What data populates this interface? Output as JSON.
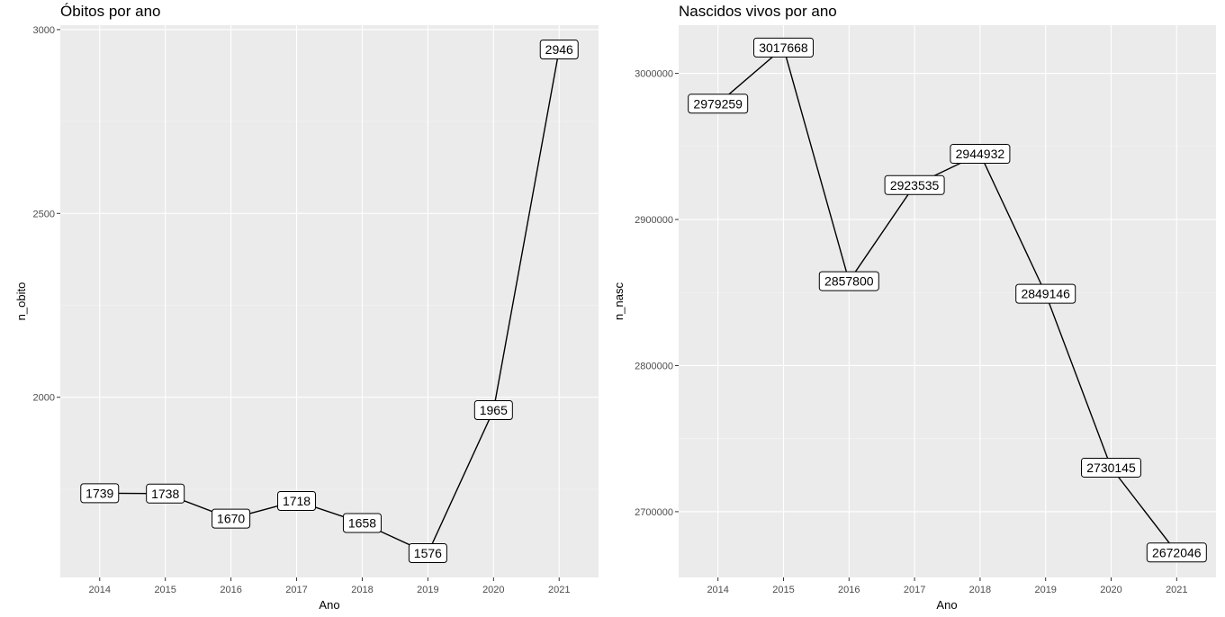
{
  "chart_data": [
    {
      "type": "line",
      "title": "Óbitos por ano",
      "xlabel": "Ano",
      "ylabel": "n_obito",
      "x": [
        2014,
        2015,
        2016,
        2017,
        2018,
        2019,
        2020,
        2021
      ],
      "values": [
        1739,
        1738,
        1670,
        1718,
        1658,
        1576,
        1965,
        2946
      ],
      "x_ticks": [
        "2014",
        "2015",
        "2016",
        "2017",
        "2018",
        "2019",
        "2020",
        "2021"
      ],
      "y_ticks": [
        2000,
        2500,
        3000
      ],
      "y_tick_labels": [
        "2000",
        "2500",
        "3000"
      ],
      "xlim": [
        2013.4,
        2021.6
      ],
      "ylim": [
        1510,
        3012
      ],
      "grid": true,
      "data_labels": true
    },
    {
      "type": "line",
      "title": "Nascidos vivos por ano",
      "xlabel": "Ano",
      "ylabel": "n_nasc",
      "x": [
        2014,
        2015,
        2016,
        2017,
        2018,
        2019,
        2020,
        2021
      ],
      "values": [
        2979259,
        3017668,
        2857800,
        2923535,
        2944932,
        2849146,
        2730145,
        2672046
      ],
      "x_ticks": [
        "2014",
        "2015",
        "2016",
        "2017",
        "2018",
        "2019",
        "2020",
        "2021"
      ],
      "y_ticks": [
        2700000,
        2800000,
        2900000,
        3000000
      ],
      "y_tick_labels": [
        "2700000",
        "2800000",
        "2900000",
        "3000000"
      ],
      "xlim": [
        2013.4,
        2021.6
      ],
      "ylim": [
        2655000,
        3033000
      ],
      "grid": true,
      "data_labels": true
    }
  ]
}
